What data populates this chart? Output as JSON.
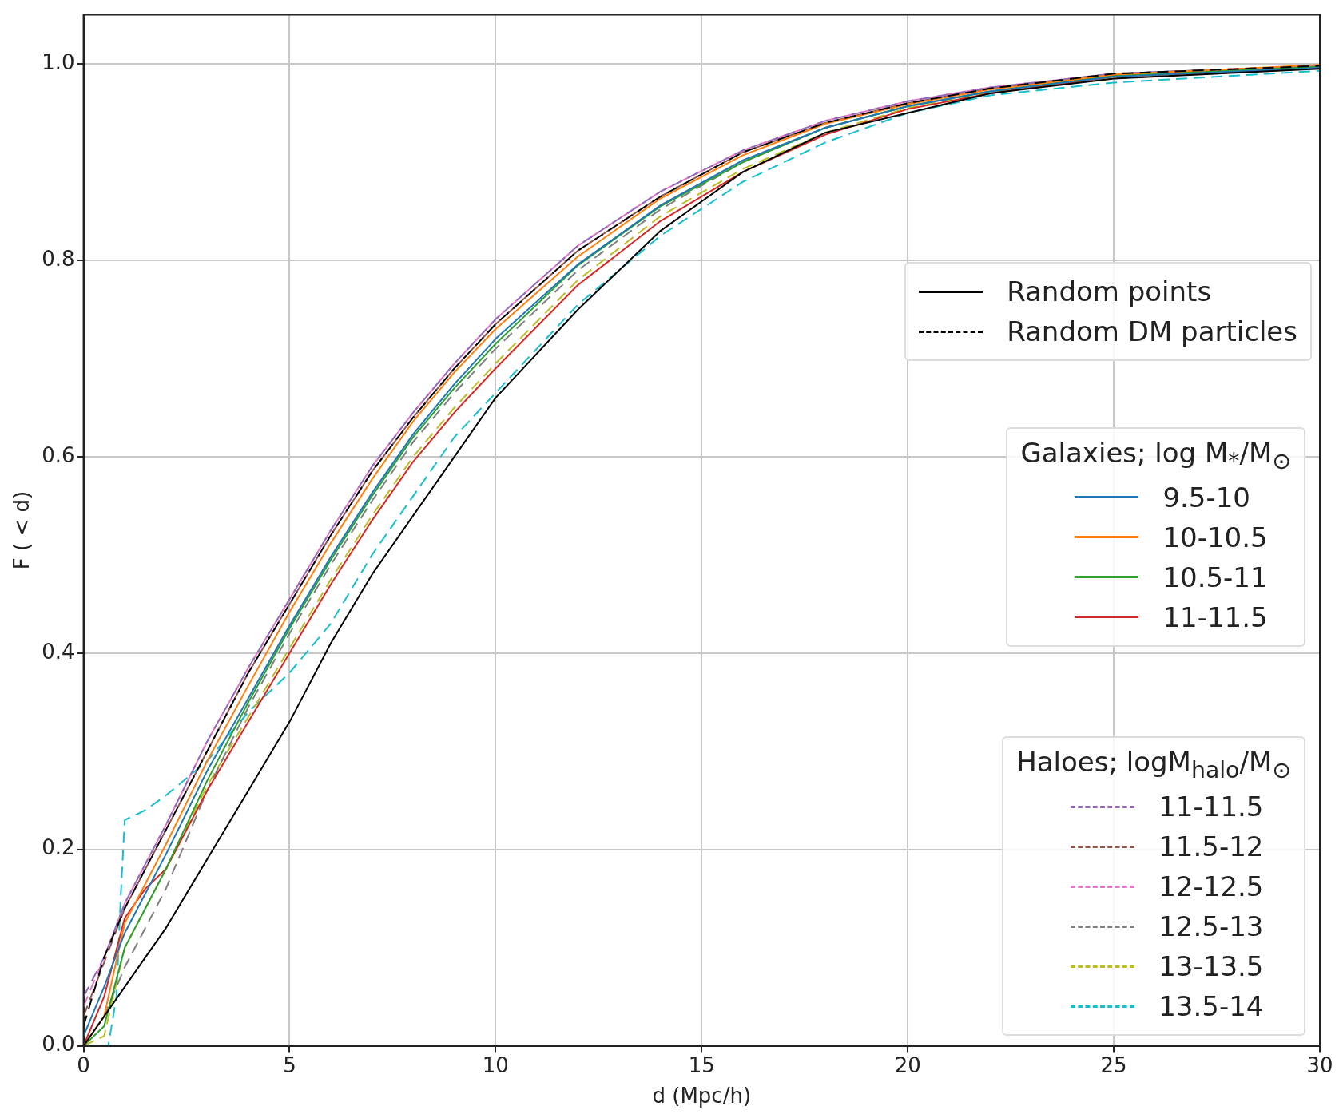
{
  "chart_data": {
    "type": "line",
    "xlabel": "d (Mpc/h)",
    "ylabel": "F ( < d)",
    "x": [
      0,
      0.5,
      1,
      1.5,
      2,
      3,
      4,
      5,
      6,
      7,
      8,
      9,
      10,
      12,
      14,
      16,
      18,
      20,
      22,
      25,
      30
    ],
    "xlim": [
      0,
      30
    ],
    "xticks": [
      0,
      5,
      10,
      15,
      20,
      25,
      30
    ],
    "ylim": [
      0,
      1.05
    ],
    "yticks": [
      {
        "value": 0,
        "label": "0.0"
      },
      0.2,
      0.4,
      0.6,
      0.8,
      {
        "value": 1,
        "label": "1.0"
      }
    ],
    "grid": true,
    "legend": "right",
    "marker": "none",
    "annotations": [
      "Galaxies; log M$_{*}$/M$_{⊙}$",
      "Haloes; logM$_{halo}$/M$_{⊙}$"
    ],
    "series": [
      {
        "name": "Random points",
        "color": "#000000",
        "line_style": "solid",
        "values": [
          0,
          0.03,
          0.06,
          0.09,
          0.12,
          0.19,
          0.26,
          0.33,
          0.41,
          0.48,
          0.54,
          0.6,
          0.66,
          0.75,
          0.83,
          0.89,
          0.93,
          0.95,
          0.97,
          0.985,
          0.995
        ]
      },
      {
        "name": "Random DM particles",
        "color": "#000000",
        "line_style": "dashed",
        "values": [
          0.02,
          0.09,
          0.14,
          0.18,
          0.22,
          0.3,
          0.38,
          0.45,
          0.52,
          0.585,
          0.64,
          0.69,
          0.735,
          0.81,
          0.865,
          0.91,
          0.94,
          0.96,
          0.975,
          0.99,
          0.998
        ]
      },
      {
        "name": "9.5-10",
        "color": "#1f77b4",
        "line_style": "solid",
        "values": [
          0.01,
          0.06,
          0.115,
          0.155,
          0.195,
          0.28,
          0.354,
          0.428,
          0.498,
          0.563,
          0.623,
          0.674,
          0.72,
          0.796,
          0.856,
          0.902,
          0.935,
          0.957,
          0.972,
          0.987,
          0.996
        ]
      },
      {
        "name": "10-10.5",
        "color": "#ff7f0e",
        "line_style": "solid",
        "values": [
          0,
          0.03,
          0.125,
          0.165,
          0.205,
          0.29,
          0.367,
          0.442,
          0.512,
          0.577,
          0.636,
          0.686,
          0.73,
          0.804,
          0.863,
          0.907,
          0.939,
          0.959,
          0.974,
          0.989,
          0.999
        ]
      },
      {
        "name": "10.5-11",
        "color": "#2ca02c",
        "line_style": "solid",
        "values": [
          0,
          0.02,
          0.1,
          0.14,
          0.18,
          0.27,
          0.35,
          0.425,
          0.495,
          0.56,
          0.62,
          0.67,
          0.715,
          0.795,
          0.855,
          0.9,
          0.935,
          0.957,
          0.972,
          0.988,
          0.997
        ]
      },
      {
        "name": "11-11.5",
        "color": "#d62728",
        "line_style": "solid",
        "values": [
          0,
          0.05,
          0.13,
          0.16,
          0.18,
          0.26,
          0.33,
          0.4,
          0.47,
          0.535,
          0.595,
          0.645,
          0.69,
          0.775,
          0.84,
          0.89,
          0.928,
          0.954,
          0.97,
          0.987,
          0.996
        ]
      },
      {
        "name": "11-11.5",
        "color": "#9467bd",
        "line_style": "dashed",
        "values": [
          0.05,
          0.09,
          0.145,
          0.185,
          0.225,
          0.31,
          0.385,
          0.455,
          0.525,
          0.59,
          0.645,
          0.695,
          0.74,
          0.815,
          0.87,
          0.912,
          0.942,
          0.962,
          0.976,
          0.99,
          0.998
        ]
      },
      {
        "name": "11.5-12",
        "color": "#8c564b",
        "line_style": "dashed",
        "values": [
          0.03,
          0.085,
          0.14,
          0.18,
          0.22,
          0.3,
          0.38,
          0.45,
          0.52,
          0.585,
          0.64,
          0.69,
          0.735,
          0.81,
          0.865,
          0.91,
          0.94,
          0.96,
          0.975,
          0.99,
          0.998
        ]
      },
      {
        "name": "12-12.5",
        "color": "#e377c2",
        "line_style": "dashed",
        "values": [
          0.04,
          0.09,
          0.145,
          0.185,
          0.225,
          0.31,
          0.385,
          0.455,
          0.525,
          0.59,
          0.645,
          0.695,
          0.74,
          0.815,
          0.87,
          0.912,
          0.942,
          0.962,
          0.976,
          0.99,
          0.998
        ]
      },
      {
        "name": "12.5-13",
        "color": "#7f7f7f",
        "line_style": "dashed",
        "values": [
          0,
          0.03,
          0.08,
          0.12,
          0.16,
          0.26,
          0.345,
          0.42,
          0.49,
          0.555,
          0.615,
          0.665,
          0.71,
          0.79,
          0.852,
          0.9,
          0.935,
          0.957,
          0.972,
          0.988,
          0.997
        ]
      },
      {
        "name": "13-13.5",
        "color": "#bcbd22",
        "line_style": "dashed",
        "values": [
          0,
          0.01,
          0.1,
          0.14,
          0.18,
          0.265,
          0.335,
          0.405,
          0.475,
          0.54,
          0.6,
          0.65,
          0.695,
          0.78,
          0.845,
          0.893,
          0.93,
          0.955,
          0.971,
          0.985,
          0.996
        ]
      },
      {
        "name": "13.5-14",
        "color": "#17becf",
        "line_style": "dashed",
        "x": [
          0,
          0.6,
          0.8,
          0.9,
          1,
          1.5,
          2,
          3,
          4,
          5,
          6,
          7,
          8,
          9,
          10,
          12,
          14,
          16,
          18,
          20,
          22,
          25,
          30
        ],
        "values": [
          0,
          0,
          0.05,
          0.15,
          0.23,
          0.24,
          0.255,
          0.29,
          0.34,
          0.38,
          0.43,
          0.5,
          0.56,
          0.62,
          0.665,
          0.755,
          0.825,
          0.88,
          0.92,
          0.95,
          0.968,
          0.981,
          0.993
        ]
      }
    ]
  }
}
